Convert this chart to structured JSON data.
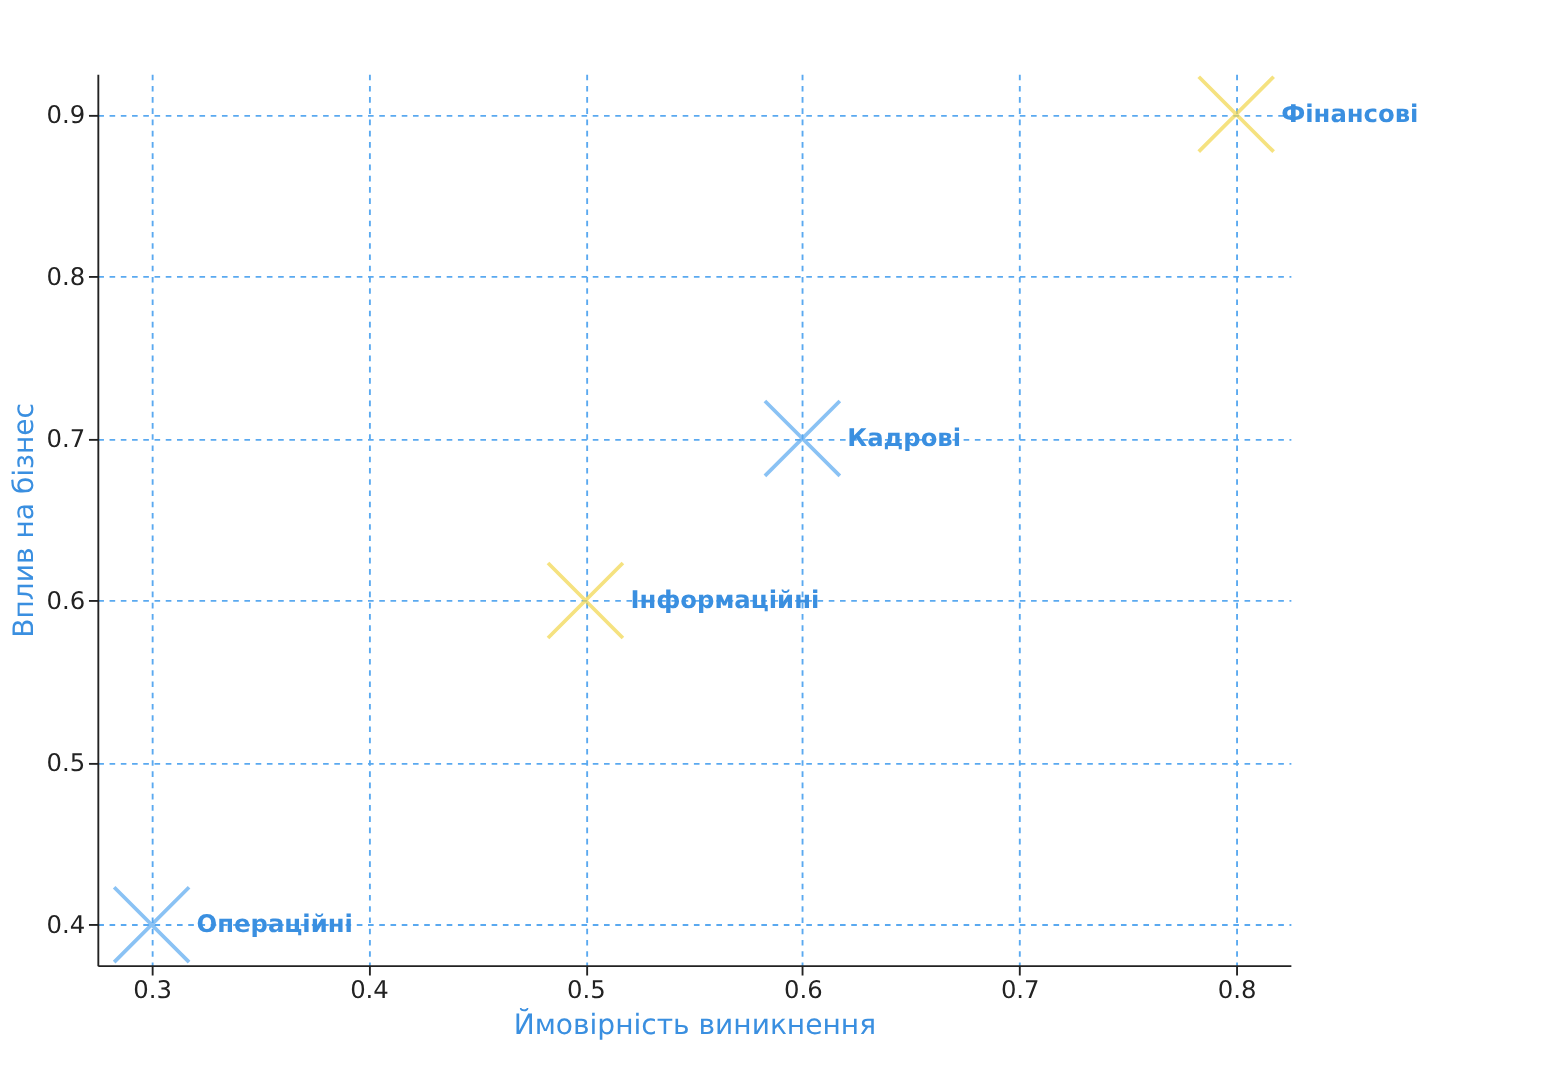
{
  "chart_data": {
    "type": "scatter",
    "xlabel": "Ймовірність виникнення",
    "ylabel": "Вплив на бізнес",
    "x": [
      0.3,
      0.5,
      0.6,
      0.8
    ],
    "values": [
      0.4,
      0.6,
      0.7,
      0.9
    ],
    "colors": [
      "#5aa9f0",
      "#f2d64b",
      "#5aa9f0",
      "#f2d64b"
    ],
    "annotations": [
      {
        "text": "Операційні",
        "x": 0.3,
        "y": 0.4
      },
      {
        "text": "Інформаційні",
        "x": 0.5,
        "y": 0.6
      },
      {
        "text": "Кадрові",
        "x": 0.6,
        "y": 0.7
      },
      {
        "text": "Фінансові",
        "x": 0.8,
        "y": 0.9
      }
    ],
    "xlim": [
      0.275,
      0.825
    ],
    "ylim": [
      0.375,
      0.925
    ],
    "xticks": [
      0.3,
      0.4,
      0.5,
      0.6,
      0.7,
      0.8
    ],
    "yticks": [
      0.4,
      0.5,
      0.6,
      0.7,
      0.8,
      0.9
    ],
    "grid": true,
    "marker": "cross"
  }
}
